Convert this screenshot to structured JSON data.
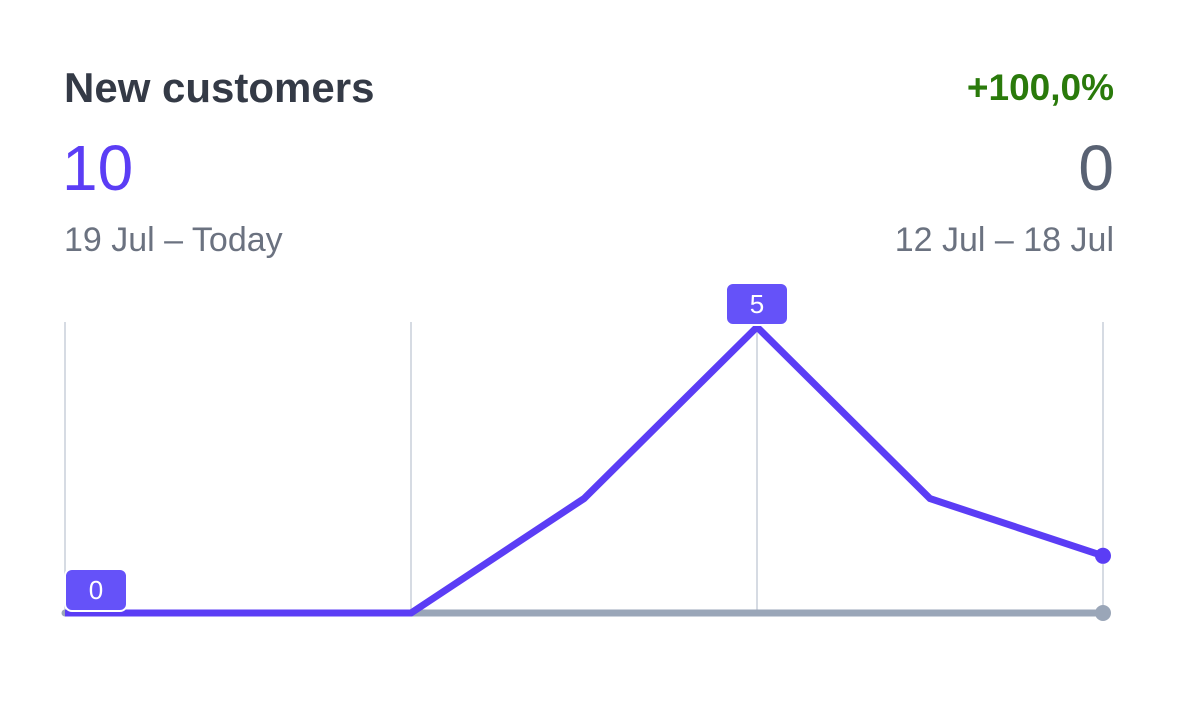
{
  "card": {
    "title": "New customers",
    "change": "+100,0%",
    "current_value": "10",
    "previous_value": "0",
    "current_range": "19 Jul – Today",
    "previous_range": "12 Jul – 18 Jul"
  },
  "colors": {
    "title": "#343a46",
    "change_positive": "#2a7a0b",
    "current_series": "#5b3df5",
    "current_tag": "#6552f9",
    "previous_series": "#9aa6b8",
    "previous_value": "#596273",
    "range_text": "#6b7280",
    "gridline": "#d6dbe3"
  },
  "chart_data": {
    "type": "line",
    "x": [
      0,
      1,
      2,
      3,
      4,
      5,
      6
    ],
    "series": [
      {
        "values": [
          0,
          0,
          0,
          2,
          5,
          2,
          1
        ]
      },
      {
        "values": [
          0,
          0,
          0,
          0,
          0,
          0,
          0
        ]
      }
    ],
    "ylim": [
      0,
      5
    ],
    "gridlines_at_x": [
      0,
      2,
      4,
      6
    ],
    "annotations": [
      {
        "series": 0,
        "index": 0,
        "label": "0"
      },
      {
        "series": 0,
        "index": 4,
        "label": "5"
      }
    ],
    "end_markers": true,
    "grid": true
  }
}
